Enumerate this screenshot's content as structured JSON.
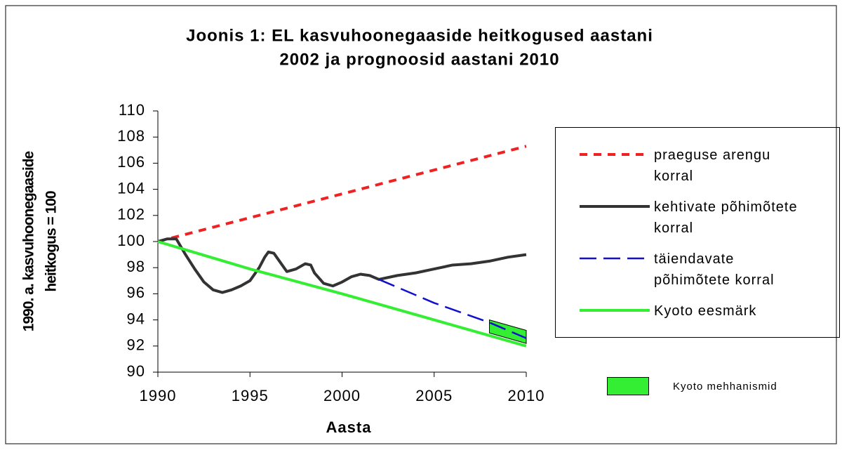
{
  "chart_data": {
    "type": "line",
    "title": [
      "Joonis 1:  EL kasvuhoonegaaside heitkogused aastani",
      "2002 ja prognoosid aastani 2010"
    ],
    "ylabel": [
      "1990. a. kasvuhoonegaaside",
      "heitkogus = 100"
    ],
    "xlabel": "Aasta",
    "xlim": [
      1990,
      2010
    ],
    "xticks": [
      1990,
      1995,
      2000,
      2005,
      2010
    ],
    "ylim": [
      90,
      110
    ],
    "yticks": [
      90,
      92,
      94,
      96,
      98,
      100,
      102,
      104,
      106,
      108,
      110
    ],
    "series": [
      {
        "name": "praeguse arengu korral",
        "color": "#ee2222",
        "line_style": "short-dash",
        "x": [
          1990,
          2010
        ],
        "values": [
          100,
          107.3
        ]
      },
      {
        "name": "kehtivate põhimõtete korral",
        "color": "#333333",
        "line_style": "solid",
        "x": [
          1990,
          1990.5,
          1991,
          1991.5,
          1992,
          1992.5,
          1993,
          1993.5,
          1994,
          1994.5,
          1995,
          1995.5,
          1995.8,
          1996,
          1996.3,
          1996.5,
          1997,
          1997.5,
          1998,
          1998.3,
          1998.5,
          1999,
          1999.5,
          2000,
          2000.5,
          2001,
          2001.5,
          2002,
          2003,
          2004,
          2005,
          2006,
          2007,
          2008,
          2009,
          2010
        ],
        "values": [
          100,
          100.2,
          100.2,
          99,
          97.9,
          96.9,
          96.3,
          96.1,
          96.3,
          96.6,
          97,
          98,
          98.8,
          99.2,
          99.1,
          98.7,
          97.7,
          97.9,
          98.3,
          98.2,
          97.6,
          96.8,
          96.6,
          96.9,
          97.3,
          97.5,
          97.4,
          97.1,
          97.4,
          97.6,
          97.9,
          98.2,
          98.3,
          98.5,
          98.8,
          99.0
        ]
      },
      {
        "name": "täiendavate põhimõtete korral",
        "color": "#1111cc",
        "line_style": "long-dash",
        "x": [
          2002,
          2005,
          2008,
          2010
        ],
        "values": [
          97.1,
          95.3,
          93.8,
          92.6
        ]
      },
      {
        "name": "Kyoto eesmärk",
        "color": "#33ee33",
        "line_style": "solid",
        "x": [
          1990,
          1995,
          2000,
          2005,
          2010
        ],
        "values": [
          100,
          97.9,
          96,
          94,
          92
        ]
      }
    ],
    "band": {
      "name": "Kyoto mehhanismid",
      "color": "#33ee33",
      "x": [
        2008,
        2010
      ],
      "upper": [
        94.0,
        93.2
      ],
      "lower": [
        93.0,
        92.2
      ]
    }
  }
}
